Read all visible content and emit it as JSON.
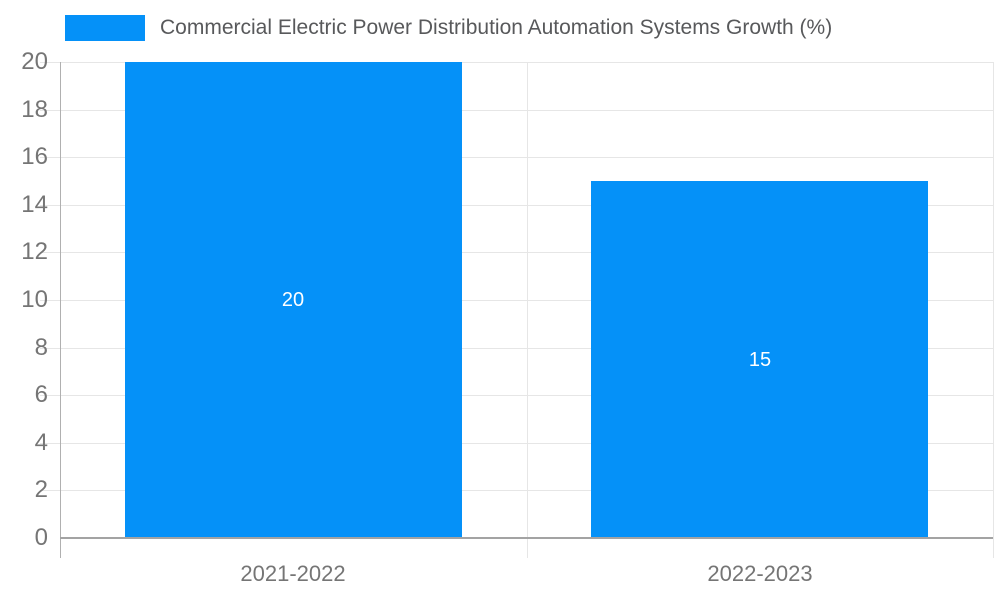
{
  "chart_data": {
    "type": "bar",
    "title": "Commercial Electric Power Distribution Automation Systems Growth (%)",
    "categories": [
      "2021-2022",
      "2022-2023"
    ],
    "values": [
      20,
      15
    ],
    "bar_labels": [
      "20",
      "15"
    ],
    "xlabel": "",
    "ylabel": "",
    "ylim": [
      0,
      20
    ],
    "yticks": [
      0,
      2,
      4,
      6,
      8,
      10,
      12,
      14,
      16,
      18,
      20
    ],
    "grid": true,
    "legend_position": "top-left",
    "legend_entries": [
      "Commercial Electric Power Distribution Automation Systems Growth (%)"
    ],
    "colors": {
      "bar": "#0591f8",
      "bar_label": "#ffffff",
      "grid_line": "#e6e6e6",
      "axis_line": "#b0b0b0",
      "baseline": "#a3a3a3",
      "tick_label": "#757575",
      "legend_text": "#58595b",
      "background": "#ffffff"
    }
  }
}
